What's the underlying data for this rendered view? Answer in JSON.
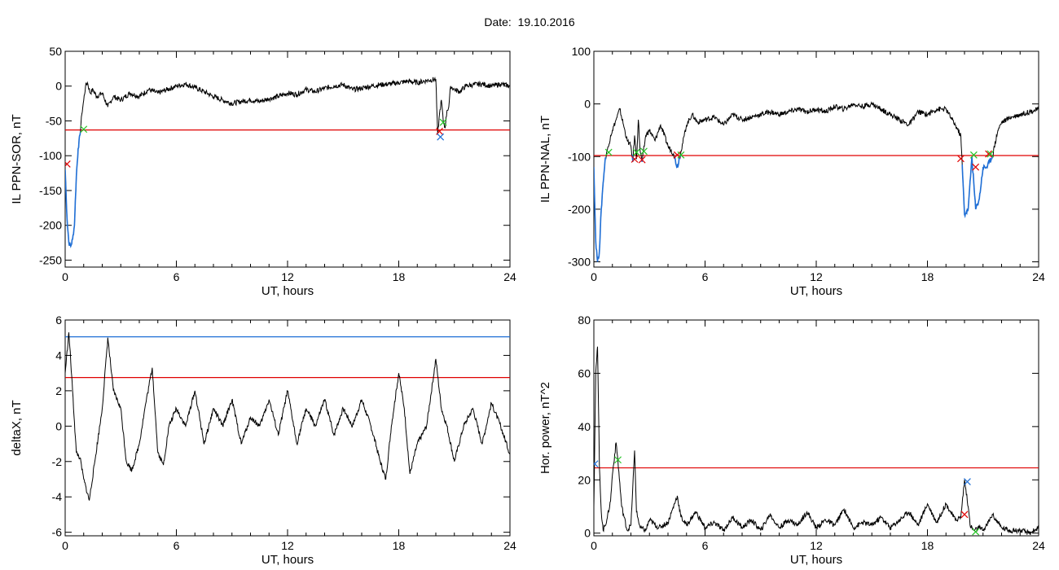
{
  "header": {
    "date_label": "Date:  19.10.2016"
  },
  "colors": {
    "curve": "#000000",
    "highlight": "#1f6fd6",
    "threshold": "#e00000",
    "blue_line": "#1f6fd6",
    "marker_green": "#22c322",
    "marker_red": "#e00000",
    "marker_blue": "#1f6fd6",
    "marker_dark": "#20208a"
  },
  "chart_data": [
    {
      "type": "line",
      "ylabel": "IL PPN-SOR, nT",
      "xlabel": "UT, hours",
      "xlim": [
        0,
        24
      ],
      "ylim": [
        -260,
        50
      ],
      "xticks": [
        0,
        6,
        12,
        18,
        24
      ],
      "yticks": [
        50,
        0,
        -50,
        -100,
        -150,
        -200,
        -250
      ],
      "grid": false,
      "hlines": [
        {
          "y": -63,
          "color": "red"
        }
      ],
      "series": [
        {
          "x": [
            0,
            0.1,
            0.2,
            0.3,
            0.4,
            0.5,
            0.6,
            0.7,
            0.8,
            0.9,
            1.0,
            1.1,
            1.2,
            1.35,
            1.5,
            1.7,
            2.0,
            2.3,
            2.6,
            3.0,
            3.5,
            4.0,
            4.5,
            5.0,
            5.5,
            6.0,
            6.5,
            7.0,
            7.5,
            8.0,
            8.5,
            9.0,
            9.5,
            10.0,
            10.5,
            11.0,
            11.5,
            12.0,
            12.5,
            13.0,
            13.5,
            14.0,
            14.5,
            15.0,
            15.5,
            16.0,
            16.5,
            17.0,
            17.5,
            18.0,
            18.5,
            19.0,
            19.5,
            20.0,
            20.1,
            20.2,
            20.3,
            20.4,
            20.5,
            20.6,
            20.7,
            20.8,
            21.0,
            21.3,
            21.6,
            22.0,
            22.5,
            23.0,
            23.5,
            24.0
          ],
          "y": [
            -120,
            -190,
            -225,
            -230,
            -220,
            -200,
            -130,
            -90,
            -70,
            -40,
            -20,
            0,
            5,
            -10,
            -5,
            -15,
            -10,
            -30,
            -15,
            -20,
            -10,
            -15,
            -5,
            -10,
            -5,
            0,
            3,
            -2,
            -8,
            -15,
            -20,
            -25,
            -22,
            -20,
            -22,
            -18,
            -15,
            -10,
            -12,
            -5,
            -8,
            -3,
            0,
            2,
            -5,
            -3,
            0,
            2,
            3,
            5,
            7,
            5,
            8,
            10,
            -70,
            -40,
            -20,
            -50,
            -60,
            -35,
            -30,
            0,
            -5,
            -8,
            0,
            2,
            3,
            0,
            3,
            0
          ]
        }
      ],
      "markers": [
        {
          "x": 0.1,
          "y": -112,
          "color": "red"
        },
        {
          "x": 1.0,
          "y": -62,
          "color": "green"
        },
        {
          "x": 20.2,
          "y": -65,
          "color": "red"
        },
        {
          "x": 20.25,
          "y": -73,
          "color": "blue"
        },
        {
          "x": 20.4,
          "y": -52,
          "color": "green"
        }
      ]
    },
    {
      "type": "line",
      "ylabel": "IL PPN-NAL, nT",
      "xlabel": "UT, hours",
      "xlim": [
        0,
        24
      ],
      "ylim": [
        -310,
        100
      ],
      "xticks": [
        0,
        6,
        12,
        18,
        24
      ],
      "yticks": [
        100,
        0,
        -100,
        -200,
        -300
      ],
      "grid": false,
      "hlines": [
        {
          "y": -98,
          "color": "red"
        }
      ],
      "series": [
        {
          "x": [
            0,
            0.1,
            0.2,
            0.3,
            0.4,
            0.5,
            0.6,
            0.7,
            0.8,
            0.9,
            1.0,
            1.2,
            1.4,
            1.6,
            1.8,
            2.0,
            2.1,
            2.2,
            2.3,
            2.4,
            2.5,
            2.6,
            2.8,
            3.0,
            3.3,
            3.6,
            4.0,
            4.3,
            4.5,
            4.7,
            5.0,
            5.3,
            5.6,
            6.0,
            6.5,
            7.0,
            7.5,
            8.0,
            8.5,
            9.0,
            9.5,
            10.0,
            10.5,
            11.0,
            11.5,
            12.0,
            12.5,
            13.0,
            13.5,
            14.0,
            14.5,
            15.0,
            15.5,
            16.0,
            16.5,
            17.0,
            17.5,
            18.0,
            18.5,
            19.0,
            19.5,
            19.8,
            20.0,
            20.2,
            20.4,
            20.6,
            20.8,
            21.0,
            21.2,
            21.5,
            21.8,
            22.0,
            22.5,
            23.0,
            23.5,
            24.0
          ],
          "y": [
            -120,
            -260,
            -300,
            -280,
            -200,
            -150,
            -110,
            -90,
            -80,
            -60,
            -50,
            -30,
            -10,
            -40,
            -70,
            -80,
            -110,
            -60,
            -105,
            -30,
            -90,
            -110,
            -60,
            -50,
            -70,
            -40,
            -80,
            -95,
            -120,
            -90,
            -40,
            -20,
            -35,
            -30,
            -25,
            -40,
            -20,
            -30,
            -25,
            -20,
            -15,
            -20,
            -15,
            -10,
            -15,
            -10,
            -15,
            -5,
            -10,
            0,
            -5,
            0,
            -10,
            -20,
            -30,
            -40,
            -15,
            -20,
            -10,
            -10,
            -40,
            -60,
            -210,
            -200,
            -100,
            -200,
            -180,
            -120,
            -120,
            -100,
            -50,
            -35,
            -25,
            -20,
            -15,
            -10
          ]
        }
      ],
      "markers": [
        {
          "x": 0.8,
          "y": -92,
          "color": "green"
        },
        {
          "x": 2.2,
          "y": -105,
          "color": "red"
        },
        {
          "x": 2.3,
          "y": -92,
          "color": "green"
        },
        {
          "x": 2.6,
          "y": -106,
          "color": "red"
        },
        {
          "x": 2.7,
          "y": -90,
          "color": "green"
        },
        {
          "x": 4.5,
          "y": -97,
          "color": "red"
        },
        {
          "x": 4.7,
          "y": -97,
          "color": "green"
        },
        {
          "x": 19.8,
          "y": -104,
          "color": "red"
        },
        {
          "x": 20.5,
          "y": -97,
          "color": "green"
        },
        {
          "x": 20.6,
          "y": -120,
          "color": "red"
        },
        {
          "x": 21.3,
          "y": -95,
          "color": "red"
        },
        {
          "x": 21.4,
          "y": -95,
          "color": "green"
        }
      ]
    },
    {
      "type": "line",
      "ylabel": "deltaX, nT",
      "xlabel": "UT, hours",
      "xlim": [
        0,
        24
      ],
      "ylim": [
        -6.2,
        6
      ],
      "xticks": [
        0,
        6,
        12,
        18,
        24
      ],
      "yticks": [
        6,
        4,
        2,
        0,
        -2,
        -4,
        -6
      ],
      "grid": false,
      "hlines": [
        {
          "y": 5.05,
          "color": "blue"
        },
        {
          "y": 2.75,
          "color": "red"
        }
      ],
      "series": [
        {
          "x": [
            0,
            0.2,
            0.4,
            0.6,
            0.8,
            1.0,
            1.3,
            1.6,
            2.0,
            2.3,
            2.6,
            3.0,
            3.3,
            3.6,
            4.0,
            4.3,
            4.7,
            5.0,
            5.3,
            5.6,
            6.0,
            6.5,
            7.0,
            7.5,
            8.0,
            8.5,
            9.0,
            9.5,
            10.0,
            10.5,
            11.0,
            11.5,
            12.0,
            12.5,
            13.0,
            13.5,
            14.0,
            14.5,
            15.0,
            15.5,
            16.0,
            16.5,
            17.0,
            17.3,
            17.6,
            18.0,
            18.3,
            18.6,
            19.0,
            19.5,
            20.0,
            20.3,
            20.6,
            21.0,
            21.5,
            22.0,
            22.5,
            23.0,
            23.5,
            24.0
          ],
          "y": [
            3,
            5.3,
            2,
            -1.5,
            -1.8,
            -3,
            -4.2,
            -2,
            1,
            5,
            2,
            1,
            -2,
            -2.5,
            -1,
            1,
            3.3,
            -1.5,
            -2.2,
            0,
            1,
            0,
            2,
            -1,
            1,
            0,
            1.5,
            -1,
            0.5,
            0,
            1.5,
            -0.5,
            2,
            -1,
            1,
            0,
            1.5,
            -0.5,
            1,
            0,
            1.5,
            0,
            -2,
            -3,
            0,
            3,
            1,
            -2.7,
            -1,
            0,
            3.8,
            1,
            0,
            -2,
            0,
            1,
            -1,
            1.3,
            0,
            -1.6
          ]
        }
      ],
      "markers": []
    },
    {
      "type": "line",
      "ylabel": "Hor. power, nT^2",
      "xlabel": "UT, hours",
      "xlim": [
        0,
        24
      ],
      "ylim": [
        -1,
        80
      ],
      "xticks": [
        0,
        6,
        12,
        18,
        24
      ],
      "yticks": [
        80,
        60,
        40,
        20,
        0
      ],
      "grid": false,
      "hlines": [
        {
          "y": 24.5,
          "color": "red"
        }
      ],
      "series": [
        {
          "x": [
            0,
            0.1,
            0.2,
            0.3,
            0.4,
            0.5,
            0.7,
            0.9,
            1.0,
            1.2,
            1.3,
            1.5,
            1.8,
            2.0,
            2.2,
            2.3,
            2.5,
            2.8,
            3.0,
            3.5,
            4.0,
            4.5,
            4.7,
            5.0,
            5.5,
            6.0,
            6.5,
            7.0,
            7.5,
            8.0,
            8.5,
            9.0,
            9.5,
            10.0,
            10.5,
            11.0,
            11.5,
            12.0,
            12.5,
            13.0,
            13.5,
            14.0,
            14.5,
            15.0,
            15.5,
            16.0,
            16.5,
            17.0,
            17.5,
            18.0,
            18.5,
            19.0,
            19.5,
            19.8,
            20.0,
            20.2,
            20.3,
            20.5,
            20.8,
            21.0,
            21.2,
            21.5,
            22.0,
            22.5,
            23.0,
            23.5,
            24.0
          ],
          "y": [
            10,
            60,
            70,
            25,
            8,
            1,
            5,
            12,
            22,
            34,
            27,
            10,
            1,
            3,
            31,
            8,
            2,
            1,
            5,
            2,
            4,
            14,
            6,
            3,
            8,
            2,
            4,
            1,
            6,
            2,
            5,
            1,
            7,
            2,
            5,
            3,
            8,
            2,
            5,
            3,
            9,
            2,
            4,
            3,
            6,
            2,
            5,
            8,
            3,
            11,
            4,
            11,
            5,
            6,
            20,
            10,
            3,
            1,
            2,
            1,
            3,
            7,
            2,
            1,
            1,
            0,
            2
          ]
        }
      ],
      "markers": [
        {
          "x": 0.05,
          "y": 26,
          "color": "blue"
        },
        {
          "x": 1.3,
          "y": 27.5,
          "color": "green"
        },
        {
          "x": 20.0,
          "y": 7,
          "color": "red"
        },
        {
          "x": 20.15,
          "y": 19.3,
          "color": "blue"
        },
        {
          "x": 20.6,
          "y": 0.5,
          "color": "green"
        }
      ]
    }
  ]
}
